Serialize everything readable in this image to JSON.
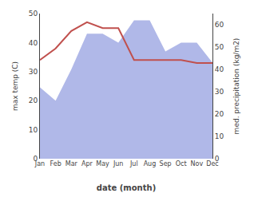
{
  "chart_data": {
    "type": "line",
    "xlabel": "date (month)",
    "ylabel": "max temp (C)",
    "y2label": "med. precipitation (kg/m2)",
    "categories": [
      "Jan",
      "Feb",
      "Mar",
      "Apr",
      "May",
      "Jun",
      "Jul",
      "Aug",
      "Sep",
      "Oct",
      "Nov",
      "Dec"
    ],
    "series": [
      {
        "type": "area",
        "axis": "y2",
        "color": "#b0b8e8",
        "values": [
          32,
          26,
          40,
          56,
          56,
          52,
          62,
          62,
          48,
          52,
          52,
          43
        ]
      },
      {
        "type": "line",
        "color": "#c0504d",
        "values": [
          34,
          38,
          44,
          47,
          45,
          45,
          34,
          34,
          34,
          34,
          33,
          33
        ]
      }
    ],
    "ylim": [
      0,
      50
    ],
    "yticks": [
      0,
      10,
      20,
      30,
      40,
      50
    ],
    "y2lim": [
      0,
      65
    ],
    "y2ticks": [
      0,
      10,
      20,
      30,
      40,
      50,
      60
    ],
    "grid": false
  }
}
